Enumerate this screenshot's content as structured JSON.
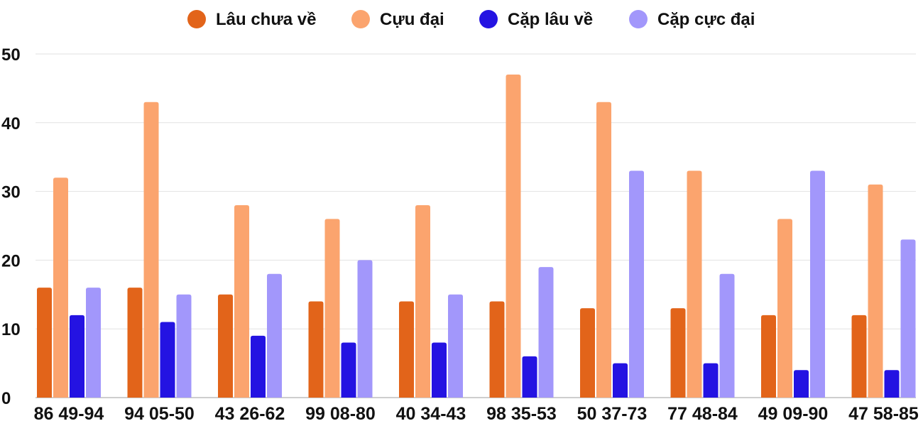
{
  "chart_data": {
    "type": "bar",
    "title": "",
    "xlabel": "",
    "ylabel": "",
    "ylim": [
      0,
      50
    ],
    "yticks": [
      0,
      10,
      20,
      30,
      40,
      50
    ],
    "grid": true,
    "legend_position": "top-center",
    "categories": [
      "86 49-94",
      "94 05-50",
      "43 26-62",
      "99 08-80",
      "40 34-43",
      "98 35-53",
      "50 37-73",
      "77 48-84",
      "49 09-90",
      "47 58-85"
    ],
    "series": [
      {
        "name": "Lâu chưa về",
        "color": "#e2641a",
        "values": [
          16,
          16,
          15,
          14,
          14,
          14,
          13,
          13,
          12,
          12
        ]
      },
      {
        "name": "Cựu đại",
        "color": "#fba46e",
        "values": [
          32,
          43,
          28,
          26,
          28,
          47,
          43,
          33,
          26,
          31
        ]
      },
      {
        "name": "Cặp lâu về",
        "color": "#2413e2",
        "values": [
          12,
          11,
          9,
          8,
          8,
          6,
          5,
          5,
          4,
          4
        ]
      },
      {
        "name": "Cặp cực đại",
        "color": "#a297fb",
        "values": [
          16,
          15,
          18,
          20,
          15,
          19,
          33,
          18,
          33,
          23
        ]
      }
    ]
  }
}
